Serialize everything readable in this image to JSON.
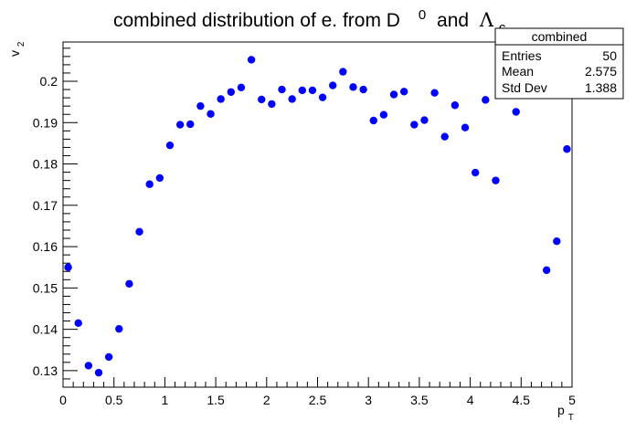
{
  "chart_data": {
    "type": "scatter",
    "title_parts": {
      "main": "combined distribution of e. from D",
      "sup": "0",
      "conj": "and",
      "lambda": "Λ",
      "sub": "c"
    },
    "xlabel": {
      "base": "p",
      "sub": "T"
    },
    "ylabel": {
      "base": "v",
      "sub": "2"
    },
    "xlim": [
      0,
      5
    ],
    "ylim": [
      0.126,
      0.2095
    ],
    "x_ticks": [
      0,
      0.5,
      1,
      1.5,
      2,
      2.5,
      3,
      3.5,
      4,
      4.5,
      5
    ],
    "x_tick_labels": [
      "0",
      "0.5",
      "1",
      "1.5",
      "2",
      "2.5",
      "3",
      "3.5",
      "4",
      "4.5",
      "5"
    ],
    "y_ticks": [
      0.13,
      0.14,
      0.15,
      0.16,
      0.17,
      0.18,
      0.19,
      0.2
    ],
    "y_tick_labels": [
      "0.13",
      "0.14",
      "0.15",
      "0.16",
      "0.17",
      "0.18",
      "0.19",
      "0.2"
    ],
    "grid": false,
    "marker_color": "#0000ff",
    "series": [
      {
        "x": [
          0.05,
          0.15,
          0.25,
          0.35,
          0.45,
          0.55,
          0.65,
          0.75,
          0.85,
          0.95,
          1.05,
          1.15,
          1.25,
          1.35,
          1.45,
          1.55,
          1.65,
          1.75,
          1.85,
          1.95,
          2.05,
          2.15,
          2.25,
          2.35,
          2.45,
          2.55,
          2.65,
          2.75,
          2.85,
          2.95,
          3.05,
          3.15,
          3.25,
          3.35,
          3.45,
          3.55,
          3.65,
          3.75,
          3.85,
          3.95,
          4.05,
          4.15,
          4.25,
          4.45,
          4.75,
          4.85,
          4.95
        ],
        "y": [
          0.155,
          0.1415,
          0.1312,
          0.1295,
          0.1333,
          0.1401,
          0.151,
          0.1636,
          0.1751,
          0.1766,
          0.1845,
          0.1895,
          0.1896,
          0.194,
          0.1921,
          0.1957,
          0.1974,
          0.1985,
          0.2052,
          0.1956,
          0.1945,
          0.198,
          0.1957,
          0.1978,
          0.1978,
          0.1961,
          0.199,
          0.2023,
          0.1986,
          0.198,
          0.1905,
          0.1919,
          0.1968,
          0.1975,
          0.1895,
          0.1906,
          0.1972,
          0.1866,
          0.1942,
          0.1888,
          0.1779,
          0.1955,
          0.176,
          0.1926,
          0.1543,
          0.1613,
          0.1836
        ]
      }
    ],
    "stats_box": {
      "name": "combined",
      "rows": [
        {
          "label": "Entries",
          "value": "50"
        },
        {
          "label": "Mean",
          "value": "2.575"
        },
        {
          "label": "Std Dev",
          "value": "1.388"
        }
      ]
    }
  }
}
